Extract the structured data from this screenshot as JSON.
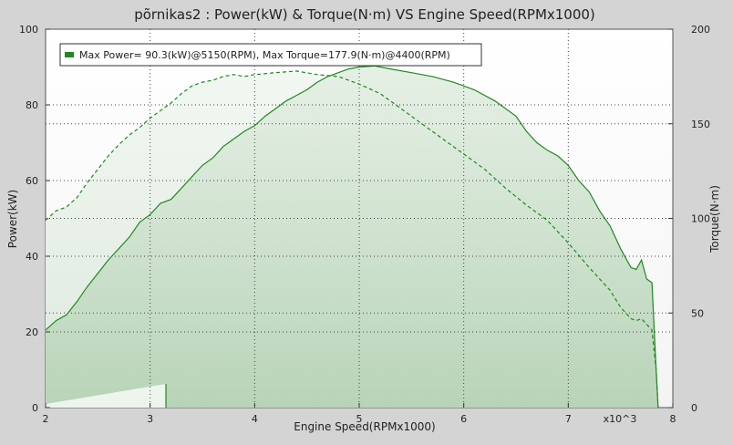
{
  "chart_data": {
    "type": "area",
    "title": "põrnikas2 : Power(kW) & Torque(N·m) VS Engine Speed(RPMx1000)",
    "xlabel": "Engine Speed(RPMx1000)",
    "ylabel_left": "Power(kW)",
    "ylabel_right": "Torque(N·m)",
    "x_multiplier_label": "x10^3",
    "xlim": [
      2,
      8
    ],
    "ylim_left": [
      0,
      100
    ],
    "ylim_right": [
      0,
      200
    ],
    "x_ticks": [
      "2",
      "3",
      "4",
      "5",
      "6",
      "7",
      "8"
    ],
    "y_ticks_left": [
      "0",
      "20",
      "40",
      "60",
      "80",
      "100"
    ],
    "y_ticks_right": [
      "0",
      "50",
      "100",
      "150",
      "200"
    ],
    "grid": true,
    "legend": "top-left",
    "legend_text": "Max Power= 90.3(kW)@5150(RPM), Max Torque=177.9(N·m)@4400(RPM)",
    "series": [
      {
        "name": "Power",
        "axis": "left",
        "style": "solid",
        "color": "#1e8a1e",
        "x": [
          2.0,
          2.1,
          2.2,
          2.3,
          2.4,
          2.5,
          2.6,
          2.7,
          2.8,
          2.9,
          3.0,
          3.1,
          3.2,
          3.3,
          3.4,
          3.5,
          3.6,
          3.7,
          3.8,
          3.9,
          4.0,
          4.1,
          4.2,
          4.3,
          4.4,
          4.5,
          4.6,
          4.7,
          4.8,
          4.9,
          5.0,
          5.15,
          5.3,
          5.5,
          5.7,
          5.9,
          6.1,
          6.3,
          6.5,
          6.6,
          6.7,
          6.8,
          6.9,
          7.0,
          7.1,
          7.2,
          7.3,
          7.4,
          7.5,
          7.6,
          7.65,
          7.7,
          7.75,
          7.8,
          7.84,
          7.86
        ],
        "y": [
          20.5,
          23,
          24.5,
          28,
          32,
          35.5,
          39,
          42,
          45,
          49,
          51,
          54,
          55,
          58,
          61,
          64,
          66,
          69,
          71,
          73,
          74.5,
          77,
          79,
          81,
          82.5,
          84,
          86,
          87.5,
          88.5,
          89.5,
          90,
          90.3,
          89.5,
          88.5,
          87.5,
          86,
          84,
          81,
          77,
          73,
          70,
          68,
          66.5,
          64,
          60,
          57,
          52,
          48,
          42,
          37,
          36.5,
          39,
          34,
          33,
          10,
          0
        ]
      },
      {
        "name": "Torque",
        "axis": "right",
        "style": "dashed",
        "color": "#1e8a1e",
        "x": [
          2.0,
          2.1,
          2.2,
          2.3,
          2.4,
          2.5,
          2.6,
          2.7,
          2.8,
          2.9,
          3.0,
          3.1,
          3.2,
          3.3,
          3.4,
          3.5,
          3.6,
          3.7,
          3.8,
          3.9,
          4.0,
          4.2,
          4.4,
          4.6,
          4.8,
          5.0,
          5.2,
          5.4,
          5.6,
          5.8,
          6.0,
          6.2,
          6.4,
          6.6,
          6.8,
          7.0,
          7.2,
          7.4,
          7.5,
          7.6,
          7.65,
          7.7,
          7.75,
          7.8,
          7.84,
          7.86
        ],
        "y": [
          99,
          104,
          106,
          111,
          119,
          126,
          133,
          139,
          144,
          148,
          153,
          157,
          161,
          166,
          170,
          172,
          173,
          175,
          176,
          175,
          176,
          177,
          177.9,
          176,
          175,
          171,
          166,
          158,
          150,
          142,
          134,
          126,
          116,
          107,
          99,
          87,
          74,
          62,
          53,
          47,
          46,
          47,
          44,
          41,
          20,
          0
        ]
      }
    ]
  }
}
